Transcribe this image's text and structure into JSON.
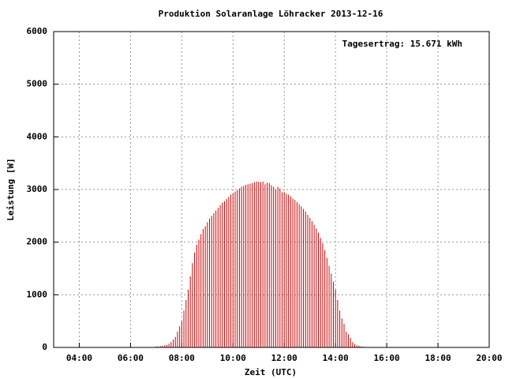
{
  "chart_data": {
    "type": "impulse",
    "title": "Produktion Solaranlage Löhracker 2013-12-16",
    "xlabel": "Zeit (UTC)",
    "ylabel": "Leistung [W]",
    "annotation": "Tagesertrag: 15.671 kWh",
    "color": "#cc0000",
    "grid": true,
    "xlim": [
      "03:00",
      "20:00"
    ],
    "xticks": [
      "04:00",
      "06:00",
      "08:00",
      "10:00",
      "12:00",
      "14:00",
      "16:00",
      "18:00",
      "20:00"
    ],
    "ylim": [
      0,
      6000
    ],
    "yticks": [
      0,
      1000,
      2000,
      3000,
      4000,
      5000,
      6000
    ],
    "x": [
      "07:00",
      "07:05",
      "07:10",
      "07:15",
      "07:20",
      "07:25",
      "07:30",
      "07:35",
      "07:40",
      "07:45",
      "07:50",
      "07:55",
      "08:00",
      "08:05",
      "08:10",
      "08:15",
      "08:20",
      "08:25",
      "08:30",
      "08:35",
      "08:40",
      "08:45",
      "08:50",
      "08:55",
      "09:00",
      "09:05",
      "09:10",
      "09:15",
      "09:20",
      "09:25",
      "09:30",
      "09:35",
      "09:40",
      "09:45",
      "09:50",
      "09:55",
      "10:00",
      "10:05",
      "10:10",
      "10:15",
      "10:20",
      "10:25",
      "10:30",
      "10:35",
      "10:40",
      "10:45",
      "10:50",
      "10:55",
      "11:00",
      "11:05",
      "11:10",
      "11:15",
      "11:20",
      "11:25",
      "11:30",
      "11:35",
      "11:40",
      "11:45",
      "11:50",
      "11:55",
      "12:00",
      "12:05",
      "12:10",
      "12:15",
      "12:20",
      "12:25",
      "12:30",
      "12:35",
      "12:40",
      "12:45",
      "12:50",
      "12:55",
      "13:00",
      "13:05",
      "13:10",
      "13:15",
      "13:20",
      "13:25",
      "13:30",
      "13:35",
      "13:40",
      "13:45",
      "13:50",
      "13:55",
      "14:00",
      "14:05",
      "14:10",
      "14:15",
      "14:20",
      "14:25",
      "14:30",
      "14:35",
      "14:40",
      "14:45",
      "14:50",
      "14:55",
      "15:00",
      "15:05",
      "15:10",
      "15:15"
    ],
    "values": [
      20,
      20,
      25,
      30,
      40,
      50,
      70,
      100,
      150,
      200,
      300,
      400,
      500,
      700,
      900,
      1100,
      1350,
      1600,
      1800,
      1950,
      2050,
      2150,
      2250,
      2300,
      2380,
      2450,
      2500,
      2550,
      2600,
      2650,
      2700,
      2750,
      2780,
      2820,
      2860,
      2900,
      2930,
      2960,
      2990,
      3020,
      3050,
      3070,
      3090,
      3100,
      3110,
      3120,
      3140,
      3150,
      3150,
      3140,
      3150,
      3100,
      3130,
      3120,
      3080,
      3050,
      3000,
      3050,
      3020,
      2950,
      2950,
      2920,
      2900,
      2870,
      2830,
      2800,
      2760,
      2720,
      2680,
      2630,
      2580,
      2520,
      2460,
      2400,
      2330,
      2260,
      2180,
      2080,
      1980,
      1850,
      1700,
      1550,
      1400,
      1250,
      1100,
      900,
      700,
      550,
      450,
      300,
      250,
      180,
      100,
      60,
      40,
      30,
      20,
      15,
      10,
      5
    ]
  }
}
